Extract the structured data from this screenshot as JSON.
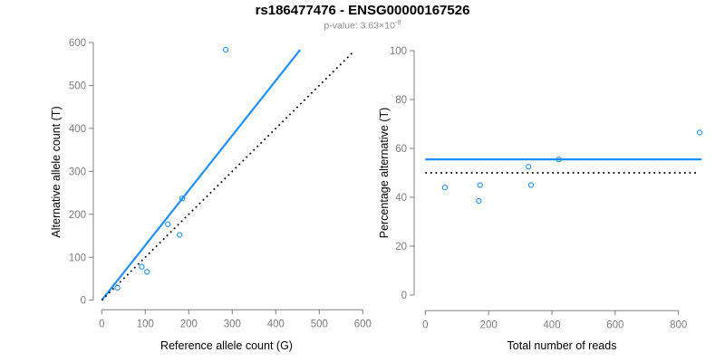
{
  "title": "rs186477476 - ENSG00000167526",
  "subtitle": {
    "prefix": "p-value: 3.63×10",
    "exponent": "-8"
  },
  "colors": {
    "accent_blue": "#1E90FF",
    "axis_gray": "#808080",
    "tick_label_gray": "#7d7d7d",
    "line_black": "#000000",
    "title_black": "#000000",
    "subtitle_gray": "#8e8e8e"
  },
  "chart_data": [
    {
      "type": "scatter",
      "name": "allele-count-scatter",
      "xlabel": "Reference allele count (G)",
      "ylabel": "Alternative allele count (T)",
      "xlim": [
        0,
        600
      ],
      "ylim": [
        0,
        600
      ],
      "xticks": [
        0,
        100,
        200,
        300,
        400,
        500,
        600
      ],
      "yticks": [
        0,
        100,
        200,
        300,
        400,
        500,
        600
      ],
      "grid": false,
      "points": [
        [
          36,
          29
        ],
        [
          92,
          78
        ],
        [
          104,
          66
        ],
        [
          152,
          177
        ],
        [
          179,
          152
        ],
        [
          185,
          237
        ],
        [
          285,
          583
        ]
      ],
      "lines": [
        {
          "name": "fit-line",
          "from": [
            0,
            0
          ],
          "to": [
            456,
            583
          ],
          "style": "solid",
          "color": "#1E90FF"
        },
        {
          "name": "identity-line",
          "from": [
            0,
            0
          ],
          "to": [
            580,
            580
          ],
          "style": "dotted",
          "color": "#000000"
        }
      ]
    },
    {
      "type": "scatter",
      "name": "percentage-alternative-scatter",
      "xlabel": "Total number of reads",
      "ylabel": "Percentage alternative (T)",
      "xlim": [
        0,
        880
      ],
      "ylim": [
        0,
        100
      ],
      "xticks": [
        0,
        200,
        400,
        600,
        800
      ],
      "yticks": [
        0,
        20,
        40,
        60,
        80,
        100
      ],
      "grid": false,
      "points": [
        [
          62,
          44
        ],
        [
          169,
          38.5
        ],
        [
          173,
          45
        ],
        [
          326,
          52.5
        ],
        [
          334,
          45
        ],
        [
          422,
          55.5
        ],
        [
          867,
          66.5
        ]
      ],
      "lines": [
        {
          "name": "fit-line",
          "from": [
            0,
            55.5
          ],
          "to": [
            873,
            55.5
          ],
          "style": "solid",
          "color": "#1E90FF"
        },
        {
          "name": "reference-line-50pct",
          "from": [
            0,
            50
          ],
          "to": [
            855,
            50
          ],
          "style": "dotted",
          "color": "#000000"
        }
      ]
    }
  ]
}
